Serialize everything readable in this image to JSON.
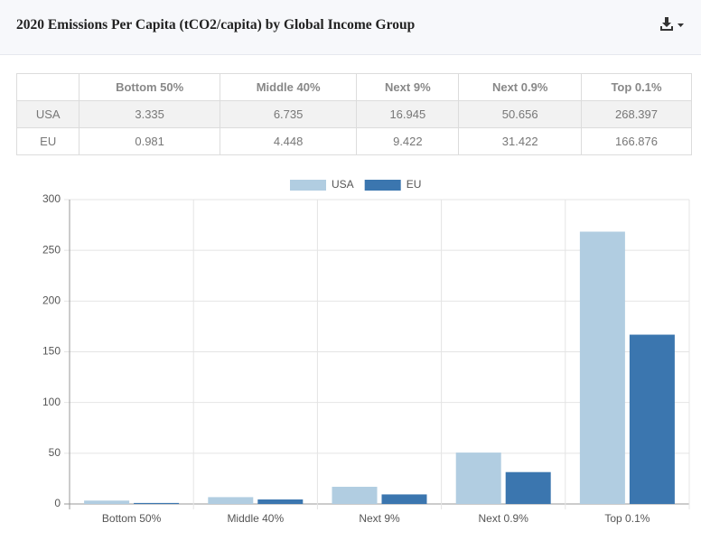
{
  "chart_data": {
    "type": "bar",
    "title": "2020 Emissions Per Capita (tCO2/capita) by Global Income Group",
    "categories": [
      "Bottom 50%",
      "Middle 40%",
      "Next 9%",
      "Next 0.9%",
      "Top 0.1%"
    ],
    "series": [
      {
        "name": "USA",
        "color": "#b1cde1",
        "values": [
          3.335,
          6.735,
          16.945,
          50.656,
          268.397
        ]
      },
      {
        "name": "EU",
        "color": "#3b76af",
        "values": [
          0.981,
          4.448,
          9.422,
          31.422,
          166.876
        ]
      }
    ],
    "ylim": [
      0,
      300
    ],
    "yticks": [
      0,
      50,
      100,
      150,
      200,
      250,
      300
    ],
    "grid": true,
    "legend": "top"
  }
}
